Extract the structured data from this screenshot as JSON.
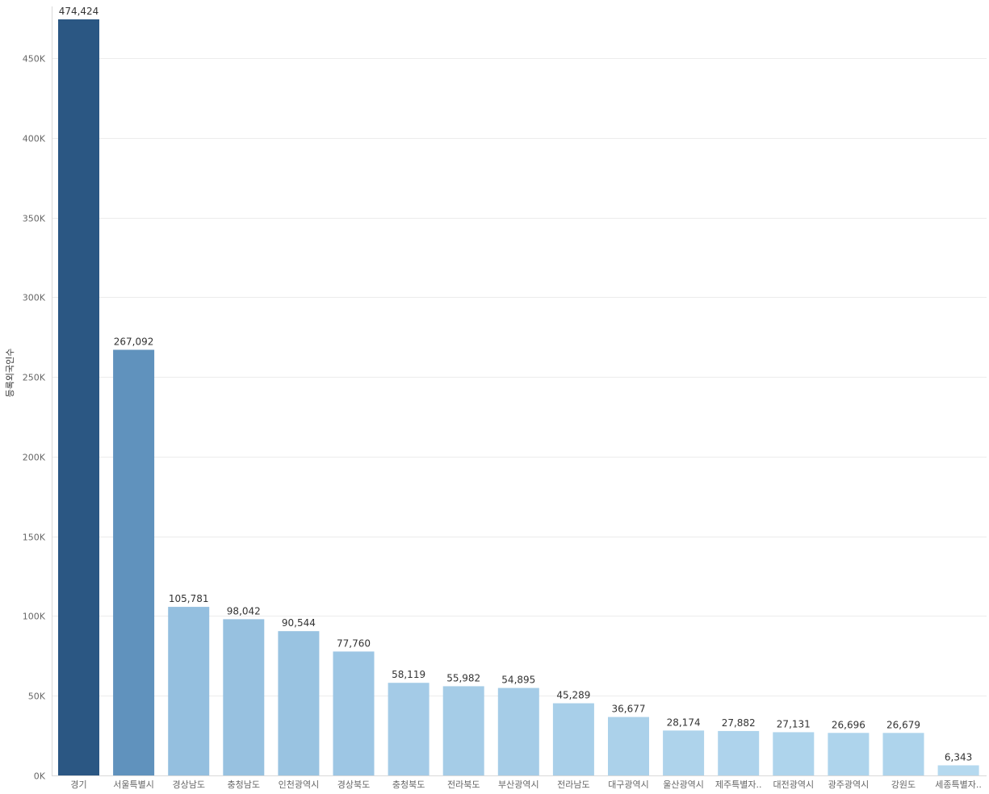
{
  "chart_data": {
    "type": "bar",
    "ylabel": "등록외국인수",
    "xlabel": "",
    "title": "",
    "ylim": [
      0,
      480000
    ],
    "yticks": [
      0,
      50000,
      100000,
      150000,
      200000,
      250000,
      300000,
      350000,
      400000,
      450000
    ],
    "ytick_labels": [
      "0K",
      "50K",
      "100K",
      "150K",
      "200K",
      "250K",
      "300K",
      "350K",
      "400K",
      "450K"
    ],
    "grid": true,
    "categories": [
      "경기",
      "서울특별시",
      "경상남도",
      "충청남도",
      "인천광역시",
      "경상북도",
      "충청북도",
      "전라북도",
      "부산광역시",
      "전라남도",
      "대구광역시",
      "울산광역시",
      "제주특별자..",
      "대전광역시",
      "광주광역시",
      "강원도",
      "세종특별자.."
    ],
    "values": [
      474424,
      267092,
      105781,
      98042,
      90544,
      77760,
      58119,
      55982,
      54895,
      45289,
      36677,
      28174,
      27882,
      27131,
      26696,
      26679,
      6343
    ],
    "value_labels": [
      "474,424",
      "267,092",
      "105,781",
      "98,042",
      "90,544",
      "77,760",
      "58,119",
      "55,982",
      "54,895",
      "45,289",
      "36,677",
      "28,174",
      "27,882",
      "27,131",
      "26,696",
      "26,679",
      "6,343"
    ],
    "colors": {
      "max": "#2b5783",
      "second": "#6092bd",
      "high": "#94bfdf",
      "low": "#b5d9ef",
      "grid": "#ececec",
      "axis": "#d9d9d9",
      "tick_text": "#666666",
      "label_text": "#333333"
    }
  }
}
